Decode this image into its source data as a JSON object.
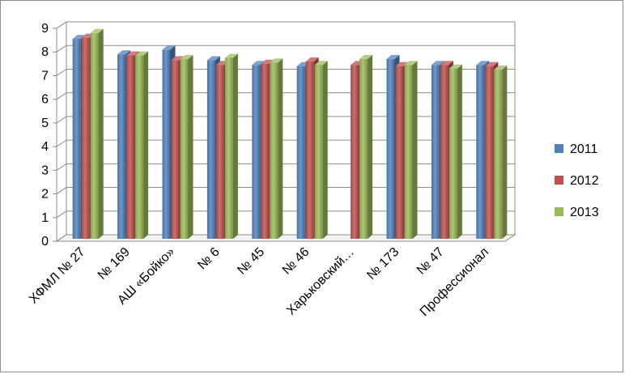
{
  "chart_data": {
    "type": "bar",
    "style": "3d-clustered-column",
    "categories": [
      "ХФМЛ № 27",
      "№ 169",
      "АШ «Бойко»",
      "№ 6",
      "№ 45",
      "№ 46",
      "Харьковский…",
      "№ 173",
      "№ 47",
      "Профессионал"
    ],
    "series": [
      {
        "name": "2011",
        "color": "#4f81bd",
        "values": [
          8.45,
          7.8,
          8.0,
          7.55,
          7.35,
          7.3,
          null,
          7.6,
          7.35,
          7.35
        ]
      },
      {
        "name": "2012",
        "color": "#c0504d",
        "values": [
          8.5,
          7.75,
          7.55,
          7.35,
          7.4,
          7.5,
          7.35,
          7.3,
          7.35,
          7.3
        ]
      },
      {
        "name": "2013",
        "color": "#9bbb59",
        "values": [
          8.7,
          7.75,
          7.6,
          7.65,
          7.45,
          7.35,
          7.6,
          7.35,
          7.2,
          7.15
        ]
      }
    ],
    "ylim": [
      0,
      9
    ],
    "yticks": [
      "0",
      "1",
      "2",
      "3",
      "4",
      "5",
      "6",
      "7",
      "8",
      "9"
    ],
    "grid": true,
    "legend_position": "right",
    "title": "",
    "xlabel": "",
    "ylabel": ""
  }
}
